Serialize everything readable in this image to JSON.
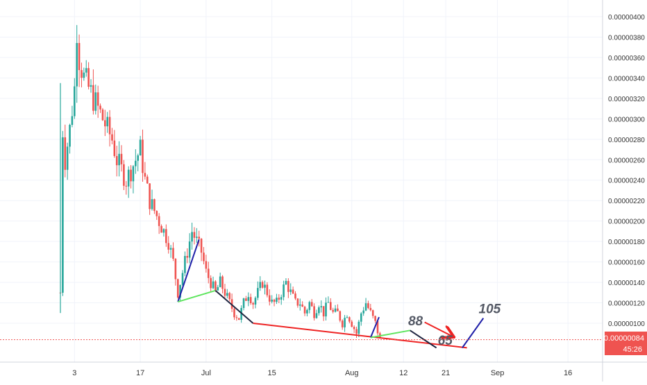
{
  "colors": {
    "up": "#26a69a",
    "down": "#ef5350",
    "grid": "#f0f3fa",
    "axis_text": "#333333",
    "price_line": "#ef5350",
    "drawing_blue": "#1f1fa8",
    "drawing_green": "#5ee55e",
    "drawing_navy": "#1e2440",
    "drawing_red": "#ee2222",
    "label_text": "#555a66"
  },
  "price_badge": {
    "value": "0.00000084",
    "countdown": "45:26"
  },
  "chart_data": {
    "type": "candlestick",
    "title": "",
    "xlabel": "",
    "ylabel": "",
    "y_unit_note": "price",
    "ylim": [
      6e-07,
      4.1e-06
    ],
    "grid": true,
    "x_ticks": [
      {
        "label": "3",
        "day": 3
      },
      {
        "label": "17",
        "day": 17
      },
      {
        "label": "Jul",
        "day": 31
      },
      {
        "label": "15",
        "day": 45
      },
      {
        "label": "Aug",
        "day": 62
      },
      {
        "label": "12",
        "day": 73
      },
      {
        "label": "21",
        "day": 82
      },
      {
        "label": "Sep",
        "day": 93
      },
      {
        "label": "16",
        "day": 108
      }
    ],
    "y_ticks": [
      "0.00000400",
      "0.00000380",
      "0.00000360",
      "0.00000340",
      "0.00000320",
      "0.00000300",
      "0.00000280",
      "0.00000260",
      "0.00000240",
      "0.00000220",
      "0.00000200",
      "0.00000180",
      "0.00000160",
      "0.00000140",
      "0.00000120",
      "0.00000100"
    ],
    "current_price": 8.4e-07,
    "price_path_note": "approximate closing-price trajectory, (day, price)",
    "price_path": [
      [
        0,
        1.3e-06
      ],
      [
        0.3,
        3e-06
      ],
      [
        1,
        2.6e-06
      ],
      [
        2,
        2.9e-06
      ],
      [
        3,
        3.3e-06
      ],
      [
        3.5,
        3.9e-06
      ],
      [
        4,
        3.6e-06
      ],
      [
        5,
        3.4e-06
      ],
      [
        6,
        3.3e-06
      ],
      [
        7,
        3.2e-06
      ],
      [
        8,
        3.1e-06
      ],
      [
        9,
        3e-06
      ],
      [
        10,
        2.9e-06
      ],
      [
        11,
        2.8e-06
      ],
      [
        12,
        2.6e-06
      ],
      [
        13,
        2.5e-06
      ],
      [
        14,
        2.4e-06
      ],
      [
        15,
        2.5e-06
      ],
      [
        16,
        2.6e-06
      ],
      [
        17,
        2.7e-06
      ],
      [
        18,
        2.4e-06
      ],
      [
        19,
        2.2e-06
      ],
      [
        20,
        2.1e-06
      ],
      [
        21,
        2e-06
      ],
      [
        22,
        1.9e-06
      ],
      [
        23,
        1.8e-06
      ],
      [
        24,
        1.6e-06
      ],
      [
        25,
        1.3e-06
      ],
      [
        26,
        1.5e-06
      ],
      [
        27,
        1.7e-06
      ],
      [
        28,
        1.9e-06
      ],
      [
        29,
        1.8e-06
      ],
      [
        30,
        1.7e-06
      ],
      [
        31,
        1.5e-06
      ],
      [
        32,
        1.4e-06
      ],
      [
        33,
        1.3e-06
      ],
      [
        34,
        1.4e-06
      ],
      [
        35,
        1.3e-06
      ],
      [
        36,
        1.2e-06
      ],
      [
        37,
        1.1e-06
      ],
      [
        38,
        1.05e-06
      ],
      [
        39,
        1.2e-06
      ],
      [
        40,
        1.3e-06
      ],
      [
        41,
        1.2e-06
      ],
      [
        42,
        1.3e-06
      ],
      [
        43,
        1.4e-06
      ],
      [
        44,
        1.3e-06
      ],
      [
        45,
        1.2e-06
      ],
      [
        46,
        1.2e-06
      ],
      [
        47,
        1.3e-06
      ],
      [
        48,
        1.4e-06
      ],
      [
        49,
        1.3e-06
      ],
      [
        50,
        1.2e-06
      ],
      [
        51,
        1.2e-06
      ],
      [
        52,
        1.1e-06
      ],
      [
        53,
        1.2e-06
      ],
      [
        54,
        1.1e-06
      ],
      [
        55,
        1.2e-06
      ],
      [
        56,
        1.1e-06
      ],
      [
        57,
        1.2e-06
      ],
      [
        58,
        1.1e-06
      ],
      [
        59,
        1.1e-06
      ],
      [
        60,
        1e-06
      ],
      [
        61,
        1.1e-06
      ],
      [
        62,
        1e-06
      ],
      [
        63,
        9e-07
      ],
      [
        64,
        1.1e-06
      ],
      [
        65,
        1.2e-06
      ],
      [
        66,
        1.1e-06
      ],
      [
        67,
        1e-06
      ],
      [
        68,
        8.4e-07
      ]
    ],
    "drawings": [
      {
        "name": "blue-leg-1",
        "color": "blue",
        "points": [
          [
            25,
            1.21e-06
          ],
          [
            29.5,
            1.82e-06
          ]
        ]
      },
      {
        "name": "green-leg-1",
        "color": "green",
        "points": [
          [
            25,
            1.21e-06
          ],
          [
            33,
            1.32e-06
          ]
        ]
      },
      {
        "name": "navy-leg-1",
        "color": "navy",
        "points": [
          [
            33,
            1.32e-06
          ],
          [
            41,
            1e-06
          ]
        ]
      },
      {
        "name": "red-support",
        "color": "red",
        "points": [
          [
            41,
            1e-06
          ],
          [
            86.5,
            7.6e-07
          ]
        ]
      },
      {
        "name": "blue-leg-2",
        "color": "blue",
        "points": [
          [
            66,
            8.6e-07
          ],
          [
            67.8,
            1.06e-06
          ]
        ]
      },
      {
        "name": "green-leg-2",
        "color": "green",
        "points": [
          [
            66,
            8.6e-07
          ],
          [
            74.4,
            9.3e-07
          ]
        ]
      },
      {
        "name": "navy-leg-2",
        "color": "navy",
        "points": [
          [
            74.4,
            9.3e-07
          ],
          [
            80,
            7.6e-07
          ]
        ]
      },
      {
        "name": "red-arrow",
        "color": "red",
        "points": [
          [
            77.5,
            1.01e-06
          ],
          [
            83.5,
            8.7e-07
          ]
        ],
        "arrow": true
      },
      {
        "name": "blue-leg-3",
        "color": "blue",
        "points": [
          [
            85.5,
            7.6e-07
          ],
          [
            90,
            1.05e-06
          ]
        ]
      }
    ],
    "annotations": [
      {
        "text": "88",
        "day": 74,
        "price": 9.8e-07
      },
      {
        "text": "65",
        "day": 80.3,
        "price": 7.9e-07
      },
      {
        "text": "105",
        "day": 89,
        "price": 1.1e-06
      }
    ]
  }
}
